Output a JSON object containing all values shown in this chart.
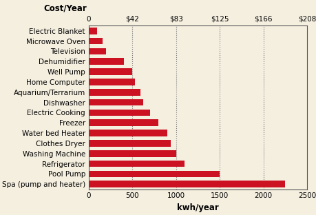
{
  "categories": [
    "Electric Blanket",
    "Microwave Oven",
    "Television",
    "Dehumidifier",
    "Well Pump",
    "Home Computer",
    "Aquarium/Terrarium",
    "Dishwasher",
    "Electric Cooking",
    "Freezer",
    "Water bed Heater",
    "Clothes Dryer",
    "Washing Machine",
    "Refrigerator",
    "Pool Pump",
    "Spa (pump and heater)"
  ],
  "values": [
    100,
    160,
    200,
    400,
    500,
    530,
    590,
    620,
    700,
    800,
    900,
    940,
    1000,
    1100,
    1500,
    2250
  ],
  "bar_color": "#cc1122",
  "background_color": "#f5efe0",
  "grid_color": "#777777",
  "top_axis_label": "Cost/Year",
  "bottom_axis_label": "kwh/year",
  "top_ticks": [
    0,
    500,
    1000,
    1500,
    2000,
    2500
  ],
  "top_tick_labels": [
    "0",
    "$42",
    "$83",
    "$125",
    "$166",
    "$208"
  ],
  "bottom_ticks": [
    0,
    500,
    1000,
    1500,
    2000,
    2500
  ],
  "bottom_tick_labels": [
    "0",
    "500",
    "1000",
    "1500",
    "2000",
    "2500"
  ],
  "xlim": [
    0,
    2500
  ],
  "grid_ticks": [
    500,
    1000,
    1500,
    2000
  ],
  "label_fontsize": 7.5,
  "axis_label_fontsize": 8.5,
  "tick_fontsize": 7.5,
  "bar_height": 0.65
}
